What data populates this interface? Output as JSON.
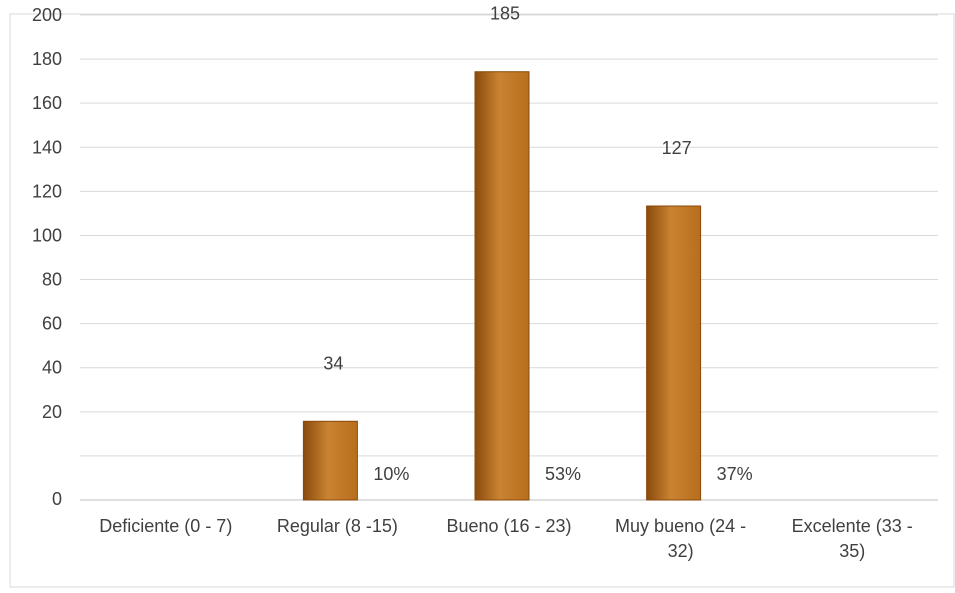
{
  "chart_data": {
    "type": "bar",
    "title": "",
    "xlabel": "",
    "ylabel": "",
    "categories": [
      [
        "Deficiente (0 - 7)"
      ],
      [
        "Regular (8 -15)"
      ],
      [
        "Bueno (16 - 23)"
      ],
      [
        "Muy bueno (24 -",
        "32)"
      ],
      [
        "Excelente (33 -",
        "35)"
      ]
    ],
    "values": [
      null,
      34,
      185,
      127,
      null
    ],
    "value_labels": [
      "",
      "34",
      "185",
      "127",
      ""
    ],
    "percent_labels": [
      "",
      "10%",
      "53%",
      "37%",
      ""
    ],
    "y_ticks": [
      "200",
      "180",
      "160",
      "140",
      "120",
      "100",
      "80",
      "60",
      "40",
      "20",
      "",
      "0"
    ],
    "ylim": [
      0,
      200
    ],
    "grid": true,
    "legend": "none",
    "colors": {
      "bar_dark": "#8a4a0b",
      "bar_mid": "#b86e1c",
      "bar_light": "#c98332",
      "grid": "#d9d9d9",
      "text": "#404040"
    }
  }
}
